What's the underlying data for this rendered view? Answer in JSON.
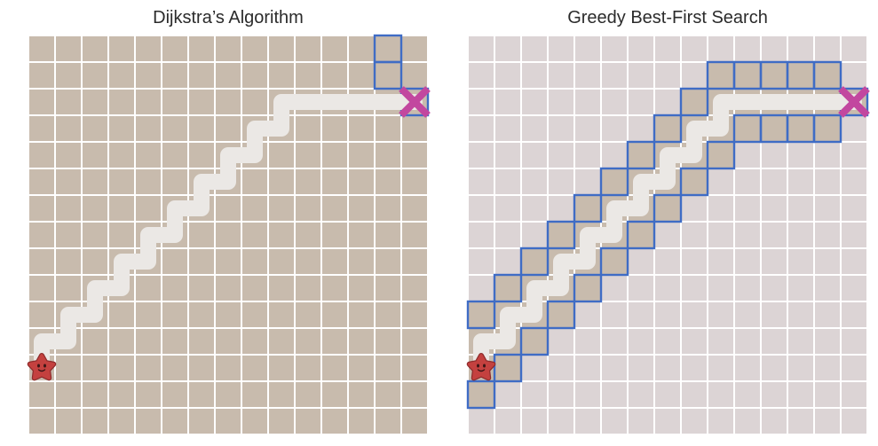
{
  "panels": [
    {
      "title": "Dijkstra’s Algorithm",
      "start_icon": "star-icon",
      "goal_icon": "x-mark-icon",
      "cells": [
        [
          1,
          1,
          1,
          1,
          1,
          1,
          1,
          1,
          1,
          1,
          1,
          1,
          1,
          2,
          1
        ],
        [
          1,
          1,
          1,
          1,
          1,
          1,
          1,
          1,
          1,
          1,
          1,
          1,
          1,
          2,
          1
        ],
        [
          1,
          1,
          1,
          1,
          1,
          1,
          1,
          1,
          1,
          1,
          1,
          1,
          1,
          1,
          2
        ],
        [
          1,
          1,
          1,
          1,
          1,
          1,
          1,
          1,
          1,
          1,
          1,
          1,
          1,
          1,
          1
        ],
        [
          1,
          1,
          1,
          1,
          1,
          1,
          1,
          1,
          1,
          1,
          1,
          1,
          1,
          1,
          1
        ],
        [
          1,
          1,
          1,
          1,
          1,
          1,
          1,
          1,
          1,
          1,
          1,
          1,
          1,
          1,
          1
        ],
        [
          1,
          1,
          1,
          1,
          1,
          1,
          1,
          1,
          1,
          1,
          1,
          1,
          1,
          1,
          1
        ],
        [
          1,
          1,
          1,
          1,
          1,
          1,
          1,
          1,
          1,
          1,
          1,
          1,
          1,
          1,
          1
        ],
        [
          1,
          1,
          1,
          1,
          1,
          1,
          1,
          1,
          1,
          1,
          1,
          1,
          1,
          1,
          1
        ],
        [
          1,
          1,
          1,
          1,
          1,
          1,
          1,
          1,
          1,
          1,
          1,
          1,
          1,
          1,
          1
        ],
        [
          1,
          1,
          1,
          1,
          1,
          1,
          1,
          1,
          1,
          1,
          1,
          1,
          1,
          1,
          1
        ],
        [
          1,
          1,
          1,
          1,
          1,
          1,
          1,
          1,
          1,
          1,
          1,
          1,
          1,
          1,
          1
        ],
        [
          1,
          1,
          1,
          1,
          1,
          1,
          1,
          1,
          1,
          1,
          1,
          1,
          1,
          1,
          1
        ],
        [
          1,
          1,
          1,
          1,
          1,
          1,
          1,
          1,
          1,
          1,
          1,
          1,
          1,
          1,
          1
        ],
        [
          1,
          1,
          1,
          1,
          1,
          1,
          1,
          1,
          1,
          1,
          1,
          1,
          1,
          1,
          1
        ]
      ],
      "path": [
        [
          0,
          12
        ],
        [
          0,
          11
        ],
        [
          1,
          11
        ],
        [
          1,
          10
        ],
        [
          2,
          10
        ],
        [
          2,
          9
        ],
        [
          3,
          9
        ],
        [
          3,
          8
        ],
        [
          4,
          8
        ],
        [
          4,
          7
        ],
        [
          5,
          7
        ],
        [
          5,
          6
        ],
        [
          6,
          6
        ],
        [
          6,
          5
        ],
        [
          7,
          5
        ],
        [
          7,
          4
        ],
        [
          8,
          4
        ],
        [
          8,
          3
        ],
        [
          9,
          3
        ],
        [
          9,
          2
        ],
        [
          10,
          2
        ],
        [
          11,
          2
        ],
        [
          12,
          2
        ],
        [
          13,
          2
        ],
        [
          14,
          2
        ]
      ]
    },
    {
      "title": "Greedy Best-First Search",
      "start_icon": "star-icon",
      "goal_icon": "x-mark-icon",
      "cells": [
        [
          0,
          0,
          0,
          0,
          0,
          0,
          0,
          0,
          0,
          0,
          0,
          0,
          0,
          0,
          0
        ],
        [
          0,
          0,
          0,
          0,
          0,
          0,
          0,
          0,
          0,
          2,
          2,
          2,
          2,
          2,
          0
        ],
        [
          0,
          0,
          0,
          0,
          0,
          0,
          0,
          0,
          2,
          1,
          1,
          1,
          1,
          1,
          2
        ],
        [
          0,
          0,
          0,
          0,
          0,
          0,
          0,
          2,
          1,
          1,
          2,
          2,
          2,
          2,
          0
        ],
        [
          0,
          0,
          0,
          0,
          0,
          0,
          2,
          1,
          1,
          2,
          0,
          0,
          0,
          0,
          0
        ],
        [
          0,
          0,
          0,
          0,
          0,
          2,
          1,
          1,
          2,
          0,
          0,
          0,
          0,
          0,
          0
        ],
        [
          0,
          0,
          0,
          0,
          2,
          1,
          1,
          2,
          0,
          0,
          0,
          0,
          0,
          0,
          0
        ],
        [
          0,
          0,
          0,
          2,
          1,
          1,
          2,
          0,
          0,
          0,
          0,
          0,
          0,
          0,
          0
        ],
        [
          0,
          0,
          2,
          1,
          1,
          2,
          0,
          0,
          0,
          0,
          0,
          0,
          0,
          0,
          0
        ],
        [
          0,
          2,
          1,
          1,
          2,
          0,
          0,
          0,
          0,
          0,
          0,
          0,
          0,
          0,
          0
        ],
        [
          2,
          1,
          1,
          2,
          0,
          0,
          0,
          0,
          0,
          0,
          0,
          0,
          0,
          0,
          0
        ],
        [
          1,
          1,
          2,
          0,
          0,
          0,
          0,
          0,
          0,
          0,
          0,
          0,
          0,
          0,
          0
        ],
        [
          1,
          2,
          0,
          0,
          0,
          0,
          0,
          0,
          0,
          0,
          0,
          0,
          0,
          0,
          0
        ],
        [
          2,
          0,
          0,
          0,
          0,
          0,
          0,
          0,
          0,
          0,
          0,
          0,
          0,
          0,
          0
        ],
        [
          0,
          0,
          0,
          0,
          0,
          0,
          0,
          0,
          0,
          0,
          0,
          0,
          0,
          0,
          0
        ]
      ],
      "path": [
        [
          0,
          12
        ],
        [
          0,
          11
        ],
        [
          1,
          11
        ],
        [
          1,
          10
        ],
        [
          2,
          10
        ],
        [
          2,
          9
        ],
        [
          3,
          9
        ],
        [
          3,
          8
        ],
        [
          4,
          8
        ],
        [
          4,
          7
        ],
        [
          5,
          7
        ],
        [
          5,
          6
        ],
        [
          6,
          6
        ],
        [
          6,
          5
        ],
        [
          7,
          5
        ],
        [
          7,
          4
        ],
        [
          8,
          4
        ],
        [
          8,
          3
        ],
        [
          9,
          3
        ],
        [
          9,
          2
        ],
        [
          10,
          2
        ],
        [
          11,
          2
        ],
        [
          12,
          2
        ],
        [
          13,
          2
        ],
        [
          14,
          2
        ]
      ]
    }
  ],
  "colors": {
    "visited": "#c8bbad",
    "unvisited": "#dcd4d5",
    "grid_line": "#ffffff",
    "frontier": "#3f6cc5",
    "path": "#ebe8e5",
    "start": "#c4413f",
    "start_outline": "#8f2c2c",
    "start_face": "#3b1616",
    "goal": "#c2479f"
  }
}
